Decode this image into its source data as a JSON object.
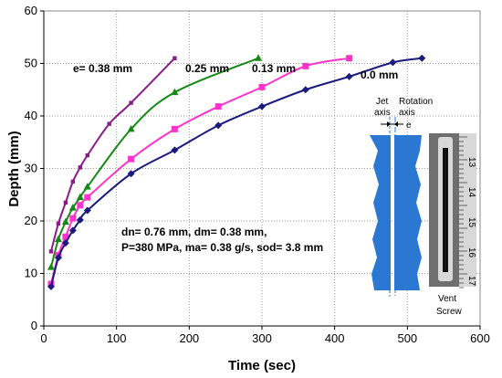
{
  "chart_data": {
    "type": "line",
    "title": "",
    "xlabel": "Time (sec)",
    "ylabel": "Depth (mm)",
    "xlim": [
      0,
      600
    ],
    "ylim": [
      0,
      60
    ],
    "xticks": [
      0,
      100,
      200,
      300,
      400,
      500,
      600
    ],
    "yticks": [
      0,
      10,
      20,
      30,
      40,
      50,
      60
    ],
    "grid": "dotted",
    "series": [
      {
        "name": "e= 0.38 mm",
        "color": "#8b1a8b",
        "marker": "square-small",
        "x": [
          10,
          20,
          30,
          40,
          50,
          60,
          90,
          120,
          180
        ],
        "y": [
          14.2,
          19.5,
          23.5,
          27.5,
          30.2,
          32.5,
          38.5,
          42.5,
          51
        ]
      },
      {
        "name": "0.25 mm",
        "color": "#138a13",
        "marker": "triangle",
        "x": [
          10,
          20,
          30,
          40,
          50,
          60,
          120,
          180,
          295
        ],
        "y": [
          11.2,
          16.5,
          19.8,
          22.5,
          24.5,
          26.5,
          37.5,
          44.5,
          51
        ]
      },
      {
        "name": "0.13 mm",
        "color": "#ff33cc",
        "marker": "square",
        "x": [
          10,
          20,
          30,
          40,
          50,
          60,
          120,
          180,
          240,
          300,
          360,
          420
        ],
        "y": [
          8,
          13.5,
          17,
          20.5,
          23,
          24.5,
          31.8,
          37.5,
          41.8,
          45.5,
          49.5,
          51
        ]
      },
      {
        "name": "0.0 mm",
        "color": "#1a1a80",
        "marker": "diamond",
        "x": [
          10,
          20,
          30,
          40,
          50,
          60,
          120,
          180,
          240,
          300,
          360,
          420,
          480,
          520
        ],
        "y": [
          7.5,
          13,
          15.8,
          18.2,
          20.2,
          22,
          29,
          33.5,
          38.2,
          41.8,
          45,
          47.5,
          50.2,
          51
        ]
      }
    ],
    "annotations": {
      "params_line1": "dn= 0.76 mm, dm= 0.38 mm,",
      "params_line2": "P=380 MPa, ma= 0.38 g/s, sod= 3.8 mm"
    },
    "inset": {
      "jet_axis_line1": "Jet",
      "jet_axis_line2": "axis",
      "rotation_axis_line1": "Rotation",
      "rotation_axis_line2": "axis",
      "offset_label": "e",
      "vent_line1": "Vent",
      "vent_line2": "Screw",
      "ruler_labels": [
        "13",
        "14",
        "15",
        "16",
        "17"
      ]
    }
  }
}
